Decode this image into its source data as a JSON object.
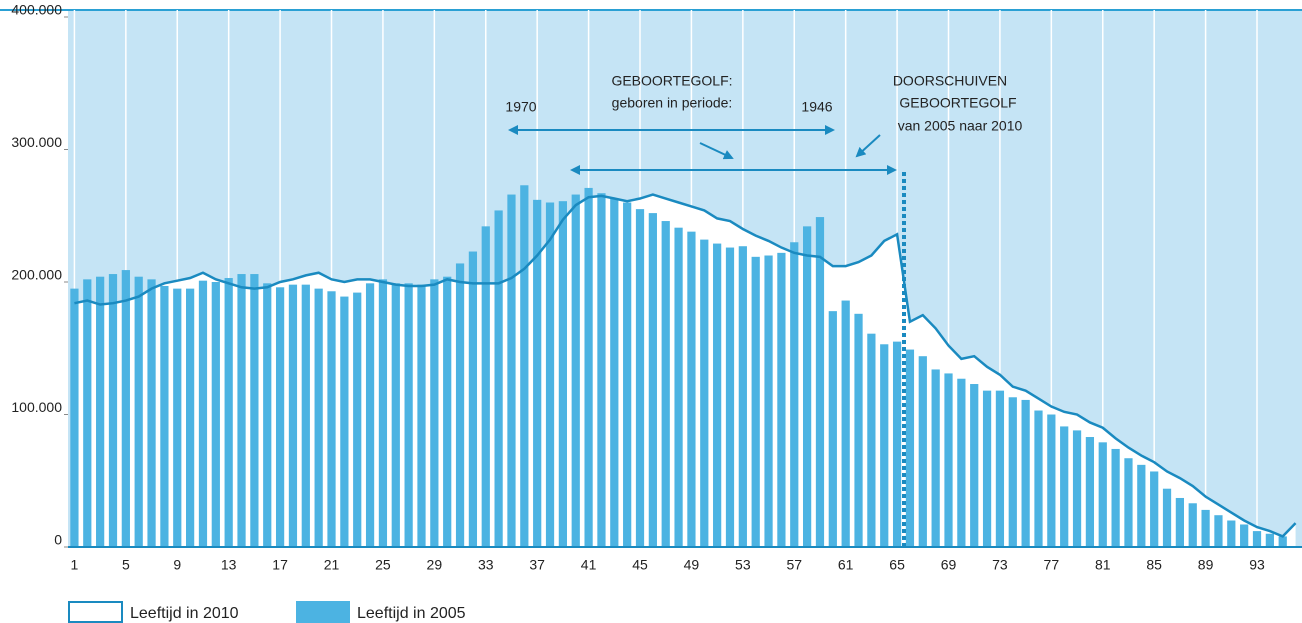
{
  "chart_data": {
    "type": "bar",
    "categories": [
      1,
      null,
      null,
      null,
      5,
      null,
      null,
      null,
      9,
      null,
      null,
      null,
      13,
      null,
      null,
      null,
      17,
      null,
      null,
      null,
      21,
      null,
      null,
      null,
      25,
      null,
      null,
      null,
      29,
      null,
      null,
      null,
      33,
      null,
      null,
      null,
      37,
      null,
      null,
      null,
      41,
      null,
      null,
      null,
      45,
      null,
      null,
      null,
      49,
      null,
      null,
      null,
      53,
      null,
      null,
      null,
      57,
      null,
      null,
      null,
      61,
      null,
      null,
      null,
      65,
      null,
      null,
      null,
      69,
      null,
      null,
      null,
      73,
      null,
      null,
      null,
      77,
      null,
      null,
      null,
      81,
      null,
      null,
      null,
      85,
      null,
      null,
      null,
      89,
      null,
      null,
      null,
      93,
      null,
      null,
      null
    ],
    "series": [
      {
        "name": "Leeftijd in 2010",
        "type": "line",
        "color": "#1a8ac0",
        "values": [
          184000,
          186000,
          183000,
          184000,
          186000,
          189000,
          195000,
          199000,
          201000,
          203000,
          207000,
          202000,
          199000,
          196000,
          195000,
          196000,
          200000,
          202000,
          205000,
          207000,
          202000,
          200000,
          202000,
          202000,
          200000,
          198000,
          197000,
          197000,
          198000,
          202000,
          200000,
          199000,
          199000,
          199000,
          203000,
          210000,
          220000,
          232000,
          247000,
          258000,
          264000,
          265000,
          263000,
          261000,
          263000,
          266000,
          263000,
          260000,
          257000,
          254000,
          248000,
          246000,
          240000,
          235000,
          231000,
          226000,
          222000,
          220000,
          219000,
          212000,
          212000,
          215000,
          220000,
          231000,
          236000,
          170000,
          175000,
          165000,
          152000,
          142000,
          144000,
          136000,
          130000,
          121000,
          118000,
          112000,
          106000,
          102000,
          100000,
          94000,
          90000,
          82000,
          75000,
          69000,
          64000,
          57000,
          52000,
          46000,
          38000,
          32000,
          26000,
          20000,
          15000,
          12000,
          8000,
          18000
        ]
      },
      {
        "name": "Leeftijd in 2005",
        "type": "bar",
        "color": "#4cb3e2",
        "values": [
          195000,
          202000,
          204000,
          206000,
          209000,
          204000,
          202000,
          197000,
          195000,
          195000,
          201000,
          200000,
          203000,
          206000,
          206000,
          199000,
          196000,
          198000,
          198000,
          195000,
          193000,
          189000,
          192000,
          199000,
          202000,
          199000,
          199000,
          198000,
          202000,
          204000,
          214000,
          223000,
          242000,
          254000,
          266000,
          273000,
          262000,
          260000,
          261000,
          266000,
          271000,
          267000,
          263000,
          260000,
          255000,
          252000,
          246000,
          241000,
          238000,
          232000,
          229000,
          226000,
          227000,
          219000,
          220000,
          222000,
          230000,
          242000,
          249000,
          178000,
          186000,
          176000,
          161000,
          153000,
          155000,
          149000,
          144000,
          134000,
          131000,
          127000,
          123000,
          118000,
          118000,
          113000,
          111000,
          103000,
          100000,
          91000,
          88000,
          83000,
          79000,
          74000,
          67000,
          62000,
          57000,
          44000,
          37000,
          33000,
          28000,
          24000,
          20000,
          17000,
          12000,
          10000,
          8000,
          null
        ]
      }
    ],
    "ylim": [
      0,
      400000
    ],
    "yticks": [
      {
        "value": 0,
        "label": "0"
      },
      {
        "value": 100000,
        "label": "100.000"
      },
      {
        "value": 200000,
        "label": "200.000"
      },
      {
        "value": 300000,
        "label": "300.000"
      },
      {
        "value": 400000,
        "label": "400.000"
      }
    ],
    "annotations": [
      "GEBOORTEGOLF:",
      "geboren in periode:",
      "1970",
      "1946",
      "DOORSCHUIVEN",
      "GEBOORTEGOLF",
      "van 2005 naar 2010"
    ]
  }
}
